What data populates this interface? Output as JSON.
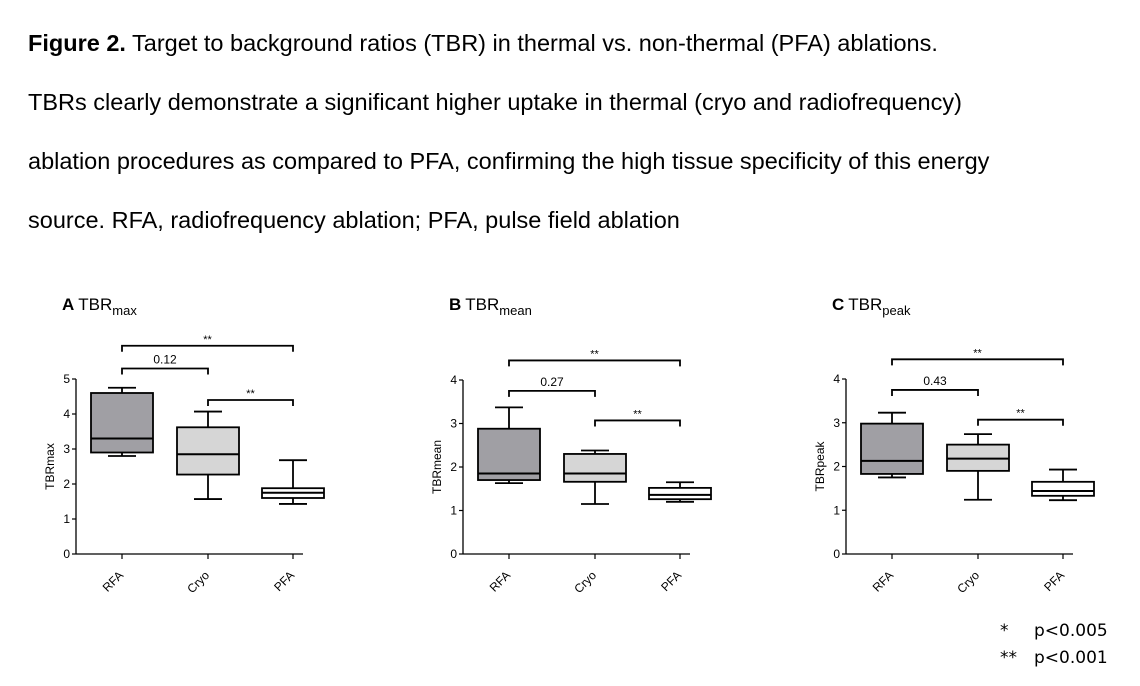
{
  "caption": {
    "label": "Figure 2.",
    "lines": [
      " Target to background ratios (TBR) in thermal vs. non-thermal (PFA) ablations.",
      "TBRs clearly demonstrate a significant higher uptake in thermal (cryo and radiofrequency)",
      "ablation procedures as compared to PFA, confirming the high tissue specificity of this energy",
      "source. RFA, radiofrequency ablation; PFA, pulse field ablation"
    ]
  },
  "legend": [
    {
      "symbol": "*",
      "text": "p<0.005"
    },
    {
      "symbol": "**",
      "text": "p<0.001"
    }
  ],
  "colors": {
    "RFA": "#a09fa4",
    "Cryo": "#d6d6d6",
    "PFA": "#ffffff",
    "stroke": "#000000"
  },
  "chart_data": [
    {
      "type": "box",
      "panel_letter": "A",
      "title_main": "TBR",
      "title_sub": "max",
      "ylabel": "TBRmax",
      "ylim": [
        0,
        5
      ],
      "yticks": [
        "0",
        "1",
        "2",
        "3",
        "4",
        "5"
      ],
      "categories": [
        "RFA",
        "Cryo",
        "PFA"
      ],
      "boxes": [
        {
          "name": "RFA",
          "min": 2.8,
          "q1": 2.9,
          "median": 3.3,
          "q3": 4.6,
          "max": 4.75
        },
        {
          "name": "Cryo",
          "min": 1.57,
          "q1": 2.27,
          "median": 2.85,
          "q3": 3.62,
          "max": 4.07
        },
        {
          "name": "PFA",
          "min": 1.43,
          "q1": 1.6,
          "median": 1.75,
          "q3": 1.88,
          "max": 2.68
        }
      ],
      "comparisons": [
        {
          "from": 0,
          "to": 2,
          "label": "**",
          "y": 5.95
        },
        {
          "from": 0,
          "to": 1,
          "label": "0.12",
          "y": 5.3
        },
        {
          "from": 1,
          "to": 2,
          "label": "**",
          "y": 4.4
        }
      ]
    },
    {
      "type": "box",
      "panel_letter": "B",
      "title_main": "TBR",
      "title_sub": "mean",
      "ylabel": "TBRmean",
      "ylim": [
        0,
        4
      ],
      "yticks": [
        "0",
        "1",
        "2",
        "3",
        "4"
      ],
      "categories": [
        "RFA",
        "Cryo",
        "PFA"
      ],
      "boxes": [
        {
          "name": "RFA",
          "min": 1.63,
          "q1": 1.7,
          "median": 1.85,
          "q3": 2.88,
          "max": 3.37
        },
        {
          "name": "Cryo",
          "min": 1.15,
          "q1": 1.66,
          "median": 1.85,
          "q3": 2.3,
          "max": 2.38
        },
        {
          "name": "PFA",
          "min": 1.2,
          "q1": 1.26,
          "median": 1.36,
          "q3": 1.52,
          "max": 1.65
        }
      ],
      "comparisons": [
        {
          "from": 0,
          "to": 2,
          "label": "**",
          "y": 4.45
        },
        {
          "from": 0,
          "to": 1,
          "label": "0.27",
          "y": 3.75
        },
        {
          "from": 1,
          "to": 2,
          "label": "**",
          "y": 3.07
        }
      ]
    },
    {
      "type": "box",
      "panel_letter": "C",
      "title_main": "TBR",
      "title_sub": "peak",
      "ylabel": "TBRpeak",
      "ylim": [
        0,
        4
      ],
      "yticks": [
        "0",
        "1",
        "2",
        "3",
        "4"
      ],
      "categories": [
        "RFA",
        "Cryo",
        "PFA"
      ],
      "boxes": [
        {
          "name": "RFA",
          "min": 1.75,
          "q1": 1.83,
          "median": 2.13,
          "q3": 2.98,
          "max": 3.23
        },
        {
          "name": "Cryo",
          "min": 1.24,
          "q1": 1.9,
          "median": 2.18,
          "q3": 2.5,
          "max": 2.74
        },
        {
          "name": "PFA",
          "min": 1.23,
          "q1": 1.33,
          "median": 1.44,
          "q3": 1.65,
          "max": 1.93
        }
      ],
      "comparisons": [
        {
          "from": 0,
          "to": 2,
          "label": "**",
          "y": 4.45
        },
        {
          "from": 0,
          "to": 1,
          "label": "0.43",
          "y": 3.75
        },
        {
          "from": 1,
          "to": 2,
          "label": "**",
          "y": 3.07
        }
      ]
    }
  ]
}
